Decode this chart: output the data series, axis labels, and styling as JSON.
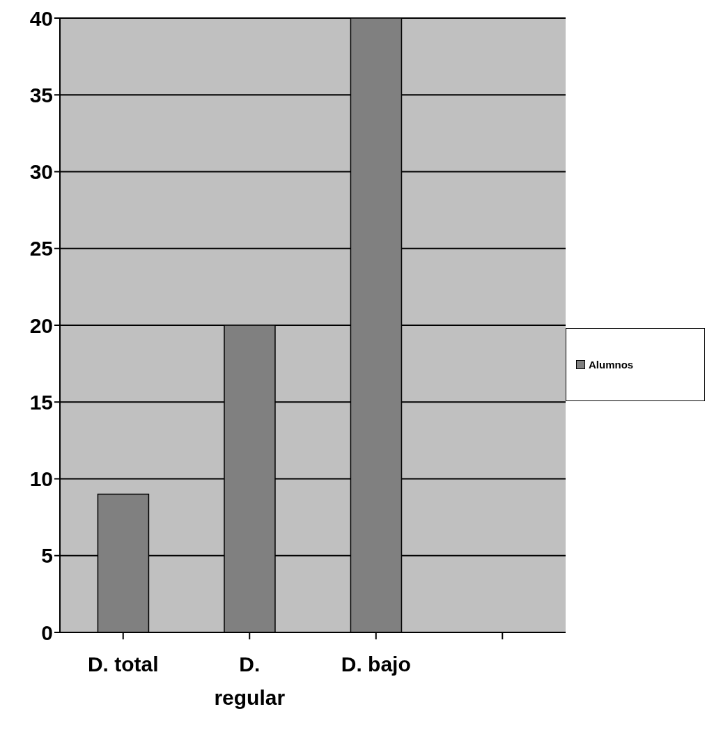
{
  "chart_data": {
    "type": "bar",
    "categories": [
      "D. total",
      "D. regular",
      "D. bajo",
      null
    ],
    "series": [
      {
        "name": "Alumnos",
        "color": "#808080",
        "values": [
          9,
          20,
          40,
          null
        ]
      }
    ],
    "ylim": [
      0,
      40
    ],
    "yticks": [
      0,
      5,
      10,
      15,
      20,
      25,
      30,
      35,
      40
    ],
    "grid": "y",
    "legend": "right"
  }
}
